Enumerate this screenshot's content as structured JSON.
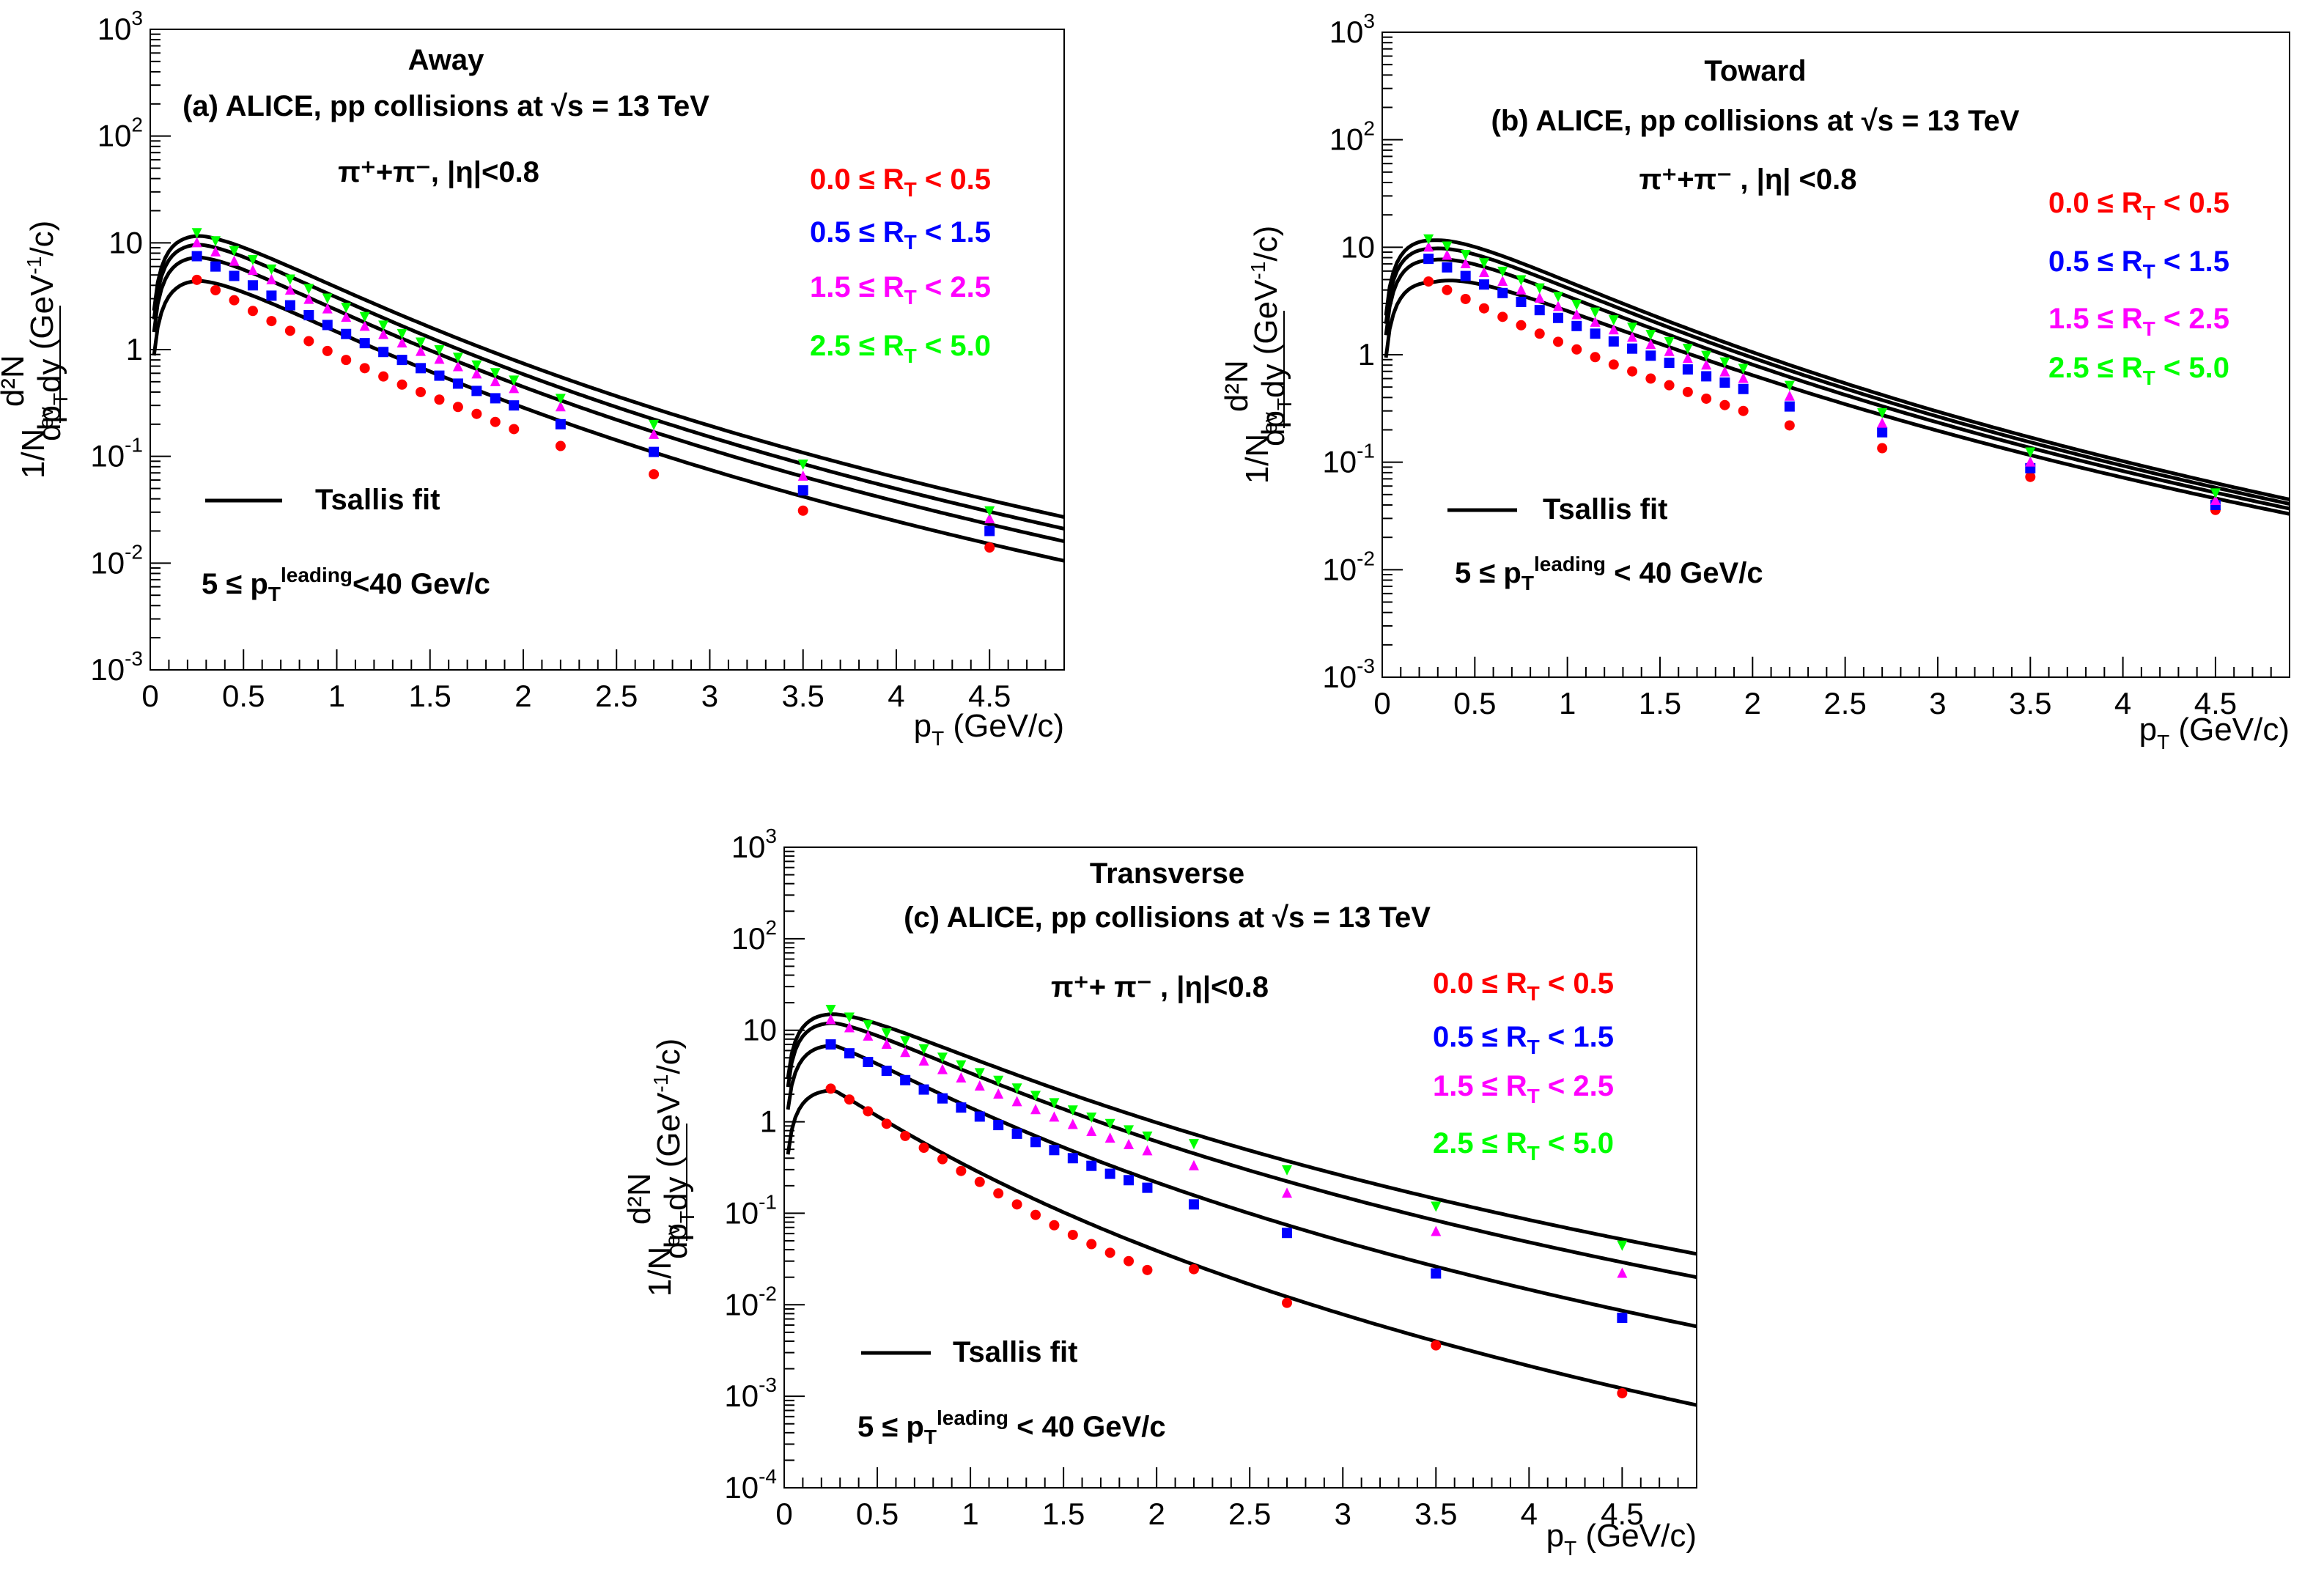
{
  "figure": {
    "legend_entries": [
      "0.0 ≤ R_T < 0.5",
      "0.5 ≤ R_T < 1.5",
      "1.5 ≤ R_T < 2.5",
      "2.5 ≤ R_T < 5.0"
    ],
    "series_colors": [
      "#ff0000",
      "#0000ff",
      "#ff00ff",
      "#00ff00"
    ],
    "fit_label": "Tsallis fit",
    "x_axis_label": {
      "main": "p",
      "sub": "T",
      "unit": " (GeV/c)"
    },
    "y_axis_label": {
      "prefix": "1/N",
      "prefix_sub": "ev",
      "num": "d²N",
      "den": "dp",
      "den_sub": "T",
      "den_tail": "dy",
      "unit": " (GeV",
      "unit_sup": "-1",
      "unit_tail": "/c)"
    }
  },
  "chart_data": [
    {
      "type": "scatter",
      "panel": "a",
      "region": "Away",
      "title": "(a)   ALICE, pp collisions at √s = 13 TeV",
      "particle": "π⁺+π⁻, |η|<0.8",
      "leading_range": "5 ≤ p_T^leading<40 Gev/c",
      "xlim": [
        0,
        4.9
      ],
      "ylim_log10": [
        -3,
        3
      ],
      "x_ticks": [
        0,
        0.5,
        1,
        1.5,
        2,
        2.5,
        3,
        3.5,
        4,
        4.5
      ],
      "x_tick_labels": [
        "0",
        "0.5",
        "1",
        "1.5",
        "2",
        "2.5",
        "3",
        "3.5",
        "4",
        "4.5"
      ],
      "y_tick_labels": [
        "10^-3",
        "10^-2",
        "10^-1",
        "1",
        "10",
        "10^2",
        "10^3"
      ],
      "x": [
        0.25,
        0.35,
        0.45,
        0.55,
        0.65,
        0.75,
        0.85,
        0.95,
        1.05,
        1.15,
        1.25,
        1.35,
        1.45,
        1.55,
        1.65,
        1.75,
        1.85,
        1.95,
        2.2,
        2.7,
        3.5,
        4.5
      ],
      "series": [
        {
          "name": "0.0 ≤ R_T < 0.5",
          "color": "#ff0000",
          "marker": "circle",
          "values": [
            4.5,
            3.6,
            2.9,
            2.3,
            1.85,
            1.5,
            1.2,
            0.97,
            0.8,
            0.67,
            0.56,
            0.47,
            0.4,
            0.34,
            0.29,
            0.25,
            0.21,
            0.18,
            0.125,
            0.068,
            0.031,
            0.014
          ]
        },
        {
          "name": "0.5 ≤ R_T < 1.5",
          "color": "#0000ff",
          "marker": "square",
          "values": [
            7.5,
            6.0,
            4.9,
            4.0,
            3.2,
            2.6,
            2.1,
            1.7,
            1.4,
            1.15,
            0.95,
            0.8,
            0.67,
            0.57,
            0.48,
            0.41,
            0.35,
            0.3,
            0.2,
            0.11,
            0.048,
            0.02
          ]
        },
        {
          "name": "1.5 ≤ R_T < 2.5",
          "color": "#ff00ff",
          "marker": "triangle",
          "values": [
            10.0,
            8.2,
            6.7,
            5.5,
            4.5,
            3.6,
            2.95,
            2.4,
            2.0,
            1.65,
            1.38,
            1.15,
            0.96,
            0.81,
            0.69,
            0.59,
            0.5,
            0.43,
            0.29,
            0.16,
            0.065,
            0.026
          ]
        },
        {
          "name": "2.5 ≤ R_T < 5.0",
          "color": "#00ff00",
          "marker": "tri-down",
          "values": [
            12.5,
            10.5,
            8.5,
            7.0,
            5.7,
            4.6,
            3.75,
            3.05,
            2.5,
            2.05,
            1.7,
            1.42,
            1.18,
            1.0,
            0.85,
            0.72,
            0.61,
            0.52,
            0.35,
            0.2,
            0.085,
            0.031
          ]
        }
      ],
      "fit_peak": [
        4.4,
        7.3,
        9.6,
        11.6
      ],
      "fit_tail_5": [
        0.0105,
        0.016,
        0.021,
        0.027
      ]
    },
    {
      "type": "scatter",
      "panel": "b",
      "region": "Toward",
      "title": "(b) ALICE, pp collisions at  √s = 13 TeV",
      "particle": "π⁺+π⁻ , |η| <0.8",
      "leading_range": "5 ≤ p_T^leading < 40 GeV/c",
      "xlim": [
        0,
        4.9
      ],
      "ylim_log10": [
        -3,
        3
      ],
      "x_ticks": [
        0,
        0.5,
        1,
        1.5,
        2,
        2.5,
        3,
        3.5,
        4,
        4.5
      ],
      "x_tick_labels": [
        "0",
        "0.5",
        "1",
        "1.5",
        "2",
        "2.5",
        "3",
        "3.5",
        "4",
        "4.5"
      ],
      "y_tick_labels": [
        "10^-3",
        "10^-2",
        "10^-1",
        "1",
        "10",
        "10^2",
        "10^3"
      ],
      "x": [
        0.25,
        0.35,
        0.45,
        0.55,
        0.65,
        0.75,
        0.85,
        0.95,
        1.05,
        1.15,
        1.25,
        1.35,
        1.45,
        1.55,
        1.65,
        1.75,
        1.85,
        1.95,
        2.2,
        2.7,
        3.5,
        4.5
      ],
      "series": [
        {
          "name": "0.0 ≤ R_T < 0.5",
          "color": "#ff0000",
          "marker": "circle",
          "values": [
            4.8,
            4.0,
            3.3,
            2.7,
            2.25,
            1.88,
            1.57,
            1.32,
            1.12,
            0.95,
            0.81,
            0.7,
            0.6,
            0.52,
            0.45,
            0.39,
            0.34,
            0.3,
            0.22,
            0.135,
            0.073,
            0.036
          ]
        },
        {
          "name": "0.5 ≤ R_T < 1.5",
          "color": "#0000ff",
          "marker": "square",
          "values": [
            7.8,
            6.5,
            5.4,
            4.5,
            3.75,
            3.1,
            2.6,
            2.2,
            1.85,
            1.57,
            1.33,
            1.14,
            0.98,
            0.84,
            0.73,
            0.63,
            0.55,
            0.48,
            0.33,
            0.19,
            0.088,
            0.04
          ]
        },
        {
          "name": "1.5 ≤ R_T < 2.5",
          "color": "#ff00ff",
          "marker": "triangle",
          "values": [
            10.0,
            8.4,
            7.0,
            5.8,
            4.8,
            4.0,
            3.35,
            2.8,
            2.35,
            2.0,
            1.7,
            1.45,
            1.24,
            1.07,
            0.92,
            0.8,
            0.69,
            0.6,
            0.41,
            0.23,
            0.1,
            0.044
          ]
        },
        {
          "name": "2.5 ≤ R_T < 5.0",
          "color": "#00ff00",
          "marker": "tri-down",
          "values": [
            12.0,
            10.3,
            8.6,
            7.2,
            6.0,
            5.0,
            4.2,
            3.5,
            2.95,
            2.5,
            2.12,
            1.81,
            1.55,
            1.33,
            1.15,
            0.99,
            0.86,
            0.75,
            0.52,
            0.29,
            0.125,
            0.052
          ]
        }
      ],
      "fit_peak": [
        4.7,
        7.6,
        9.7,
        11.6
      ],
      "fit_tail_5": [
        0.033,
        0.037,
        0.041,
        0.045
      ]
    },
    {
      "type": "scatter",
      "panel": "c",
      "region": "Transverse",
      "title": "(c) ALICE, pp collisions at  √s = 13 TeV",
      "particle": "π⁺+ π⁻ , |η|<0.8",
      "leading_range": "5 ≤ p_T^leading < 40 GeV/c",
      "xlim": [
        0,
        4.9
      ],
      "ylim_log10": [
        -4,
        3
      ],
      "x_ticks": [
        0,
        0.5,
        1,
        1.5,
        2,
        2.5,
        3,
        3.5,
        4,
        4.5
      ],
      "x_tick_labels": [
        "0",
        "0.5",
        "1",
        "1.5",
        "2",
        "2.5",
        "3",
        "3.5",
        "4",
        "4.5"
      ],
      "y_tick_labels": [
        "10^-4",
        "10^-3",
        "10^-2",
        "10^-1",
        "1",
        "10",
        "10^2",
        "10^3"
      ],
      "x": [
        0.25,
        0.35,
        0.45,
        0.55,
        0.65,
        0.75,
        0.85,
        0.95,
        1.05,
        1.15,
        1.25,
        1.35,
        1.45,
        1.55,
        1.65,
        1.75,
        1.85,
        1.95,
        2.2,
        2.7,
        3.5,
        4.5
      ],
      "series": [
        {
          "name": "0.0 ≤ R_T < 0.5",
          "color": "#ff0000",
          "marker": "circle",
          "values": [
            2.3,
            1.75,
            1.3,
            0.95,
            0.7,
            0.52,
            0.39,
            0.29,
            0.22,
            0.165,
            0.125,
            0.096,
            0.074,
            0.058,
            0.046,
            0.037,
            0.03,
            0.024,
            0.0245,
            0.0105,
            0.0036,
            0.00108
          ]
        },
        {
          "name": "0.5 ≤ R_T < 1.5",
          "color": "#0000ff",
          "marker": "square",
          "values": [
            7.0,
            5.6,
            4.5,
            3.6,
            2.85,
            2.25,
            1.8,
            1.43,
            1.14,
            0.92,
            0.74,
            0.6,
            0.49,
            0.4,
            0.33,
            0.27,
            0.23,
            0.19,
            0.125,
            0.061,
            0.022,
            0.0072
          ]
        },
        {
          "name": "1.5 ≤ R_T < 2.5",
          "color": "#ff00ff",
          "marker": "triangle",
          "values": [
            13.0,
            10.6,
            8.6,
            7.0,
            5.7,
            4.6,
            3.7,
            3.0,
            2.45,
            2.0,
            1.65,
            1.35,
            1.12,
            0.93,
            0.78,
            0.66,
            0.56,
            0.48,
            0.33,
            0.165,
            0.063,
            0.022
          ]
        },
        {
          "name": "2.5 ≤ R_T < 5.0",
          "color": "#00ff00",
          "marker": "tri-down",
          "values": [
            17.0,
            14.0,
            11.5,
            9.4,
            7.7,
            6.3,
            5.1,
            4.2,
            3.45,
            2.85,
            2.35,
            1.95,
            1.62,
            1.35,
            1.13,
            0.96,
            0.82,
            0.7,
            0.58,
            0.3,
            0.12,
            0.045
          ]
        }
      ],
      "fit_peak": [
        2.2,
        6.8,
        12.0,
        15.0
      ],
      "fit_tail_5": [
        0.0008,
        0.0058,
        0.02,
        0.036
      ]
    }
  ]
}
